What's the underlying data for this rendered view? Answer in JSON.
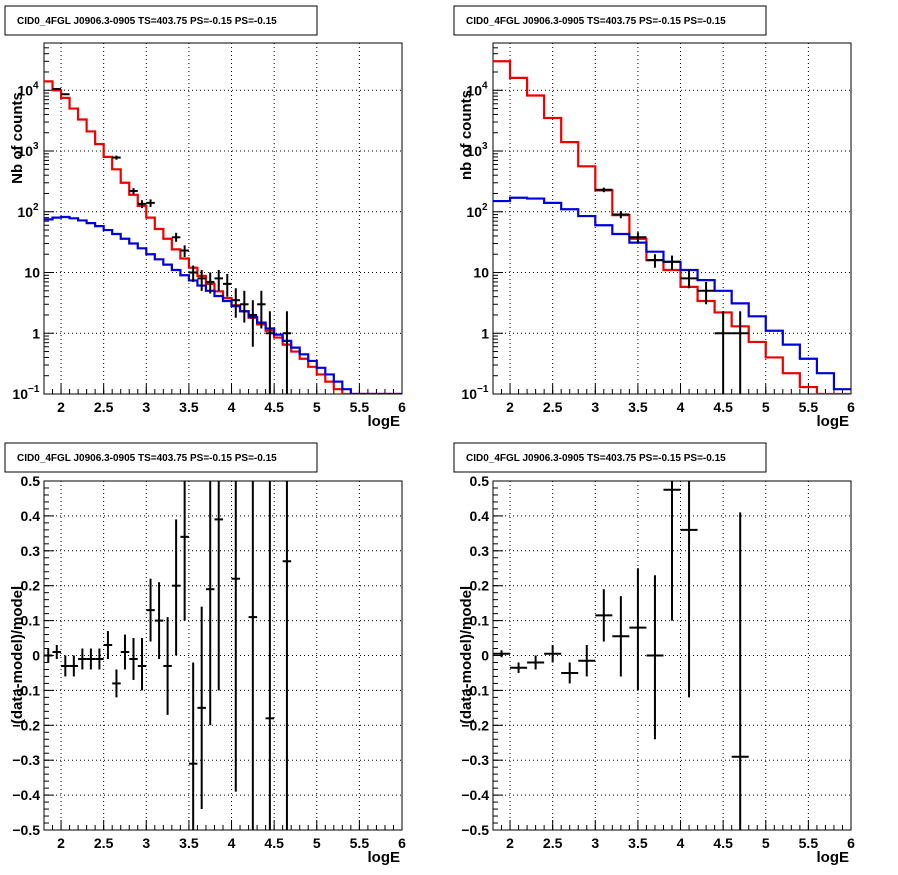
{
  "chart_data": [
    {
      "type": "line",
      "title": "CID0_4FGL J0906.3-0905 TS=403.75 PS=-0.15 PS=-0.15",
      "xlabel": "logE",
      "ylabel": "Nb of counts",
      "xlim": [
        1.8,
        6
      ],
      "ylim": [
        0.1,
        60000
      ],
      "yscale": "log",
      "grid": true,
      "xticks": [
        "2",
        "2.5",
        "3",
        "3.5",
        "4",
        "4.5",
        "5",
        "5.5",
        "6"
      ],
      "yticks": [
        {
          "v": 0.1,
          "label": "10",
          "sup": "−1"
        },
        {
          "v": 1,
          "label": "1",
          "sup": ""
        },
        {
          "v": 10,
          "label": "10",
          "sup": ""
        },
        {
          "v": 100,
          "label": "10",
          "sup": "2"
        },
        {
          "v": 1000,
          "label": "10",
          "sup": "3"
        },
        {
          "v": 10000,
          "label": "10",
          "sup": "4"
        }
      ],
      "series": [
        {
          "color": "#ee0000",
          "style": "step",
          "edges": [
            1.8,
            1.9,
            2.0,
            2.1,
            2.2,
            2.3,
            2.4,
            2.5,
            2.6,
            2.7,
            2.8,
            2.9,
            3.0,
            3.1,
            3.2,
            3.3,
            3.4,
            3.5,
            3.6,
            3.7,
            3.8,
            3.9,
            4.0,
            4.1,
            4.2,
            4.3,
            4.4,
            4.5,
            4.6,
            4.7,
            4.8,
            4.9,
            5.0,
            5.1,
            5.2,
            5.3,
            5.4,
            5.5,
            5.6,
            5.7,
            5.8,
            5.9,
            6.0
          ],
          "values": [
            14000,
            10000,
            7500,
            5000,
            3300,
            2100,
            1300,
            800,
            500,
            300,
            190,
            125,
            80,
            52,
            36,
            24,
            17,
            12,
            8.8,
            6.5,
            4.9,
            3.8,
            2.9,
            2.3,
            1.8,
            1.4,
            1.1,
            0.85,
            0.65,
            0.5,
            0.38,
            0.28,
            0.21,
            0.16,
            0.12,
            0.1,
            0.1,
            0.1,
            0.1,
            0.1,
            0.1,
            0.1
          ]
        },
        {
          "color": "#0000dd",
          "style": "step",
          "edges": [
            1.8,
            1.9,
            2.0,
            2.1,
            2.2,
            2.3,
            2.4,
            2.5,
            2.6,
            2.7,
            2.8,
            2.9,
            3.0,
            3.1,
            3.2,
            3.3,
            3.4,
            3.5,
            3.6,
            3.7,
            3.8,
            3.9,
            4.0,
            4.1,
            4.2,
            4.3,
            4.4,
            4.5,
            4.6,
            4.7,
            4.8,
            4.9,
            5.0,
            5.1,
            5.2,
            5.3,
            5.4,
            5.5,
            5.6,
            5.7,
            5.8,
            5.9,
            6.0
          ],
          "values": [
            75,
            80,
            82,
            78,
            72,
            65,
            58,
            50,
            43,
            36,
            30,
            25,
            20,
            16.5,
            13.5,
            11,
            9,
            7.4,
            6.1,
            5,
            4.1,
            3.4,
            2.8,
            2.3,
            1.85,
            1.5,
            1.2,
            0.95,
            0.75,
            0.58,
            0.45,
            0.35,
            0.27,
            0.21,
            0.16,
            0.12,
            0.1,
            0.1,
            0.1,
            0.1,
            0.1,
            0.1
          ]
        }
      ],
      "points": [
        {
          "x": 1.95,
          "y": 10500,
          "ylo": 10300,
          "yhi": 10700,
          "xerr": 0.05
        },
        {
          "x": 2.05,
          "y": 8600,
          "ylo": 8400,
          "yhi": 8800,
          "xerr": 0.05
        },
        {
          "x": 2.65,
          "y": 780,
          "ylo": 720,
          "yhi": 840,
          "xerr": 0.05
        },
        {
          "x": 2.85,
          "y": 220,
          "ylo": 195,
          "yhi": 245,
          "xerr": 0.05
        },
        {
          "x": 2.95,
          "y": 135,
          "ylo": 115,
          "yhi": 155,
          "xerr": 0.05
        },
        {
          "x": 3.05,
          "y": 140,
          "ylo": 120,
          "yhi": 160,
          "xerr": 0.05
        },
        {
          "x": 3.35,
          "y": 38,
          "ylo": 32,
          "yhi": 45,
          "xerr": 0.05
        },
        {
          "x": 3.45,
          "y": 23,
          "ylo": 18,
          "yhi": 28,
          "xerr": 0.05
        },
        {
          "x": 3.55,
          "y": 10,
          "ylo": 7,
          "yhi": 13,
          "xerr": 0.05
        },
        {
          "x": 3.65,
          "y": 8,
          "ylo": 5,
          "yhi": 11,
          "xerr": 0.05
        },
        {
          "x": 3.75,
          "y": 7,
          "ylo": 4.5,
          "yhi": 10,
          "xerr": 0.05
        },
        {
          "x": 3.85,
          "y": 8,
          "ylo": 5,
          "yhi": 11,
          "xerr": 0.05
        },
        {
          "x": 3.95,
          "y": 6.5,
          "ylo": 4,
          "yhi": 9.5,
          "xerr": 0.05
        },
        {
          "x": 4.05,
          "y": 3.5,
          "ylo": 1.8,
          "yhi": 5.5,
          "xerr": 0.05
        },
        {
          "x": 4.15,
          "y": 3,
          "ylo": 1.5,
          "yhi": 5,
          "xerr": 0.05
        },
        {
          "x": 4.25,
          "y": 2,
          "ylo": 0.6,
          "yhi": 3.5,
          "xerr": 0.05
        },
        {
          "x": 4.35,
          "y": 3,
          "ylo": 1.2,
          "yhi": 5,
          "xerr": 0.05
        },
        {
          "x": 4.45,
          "y": 1,
          "ylo": 0.1,
          "yhi": 2.3,
          "xerr": 0.05
        },
        {
          "x": 4.65,
          "y": 1,
          "ylo": 0.1,
          "yhi": 2.3,
          "xerr": 0.05
        }
      ]
    },
    {
      "type": "line",
      "title": "CID0_4FGL J0906.3-0905 TS=403.75 PS=-0.15 PS=-0.15",
      "xlabel": "logE",
      "ylabel": "nb of counts",
      "xlim": [
        1.8,
        6
      ],
      "ylim": [
        0.1,
        60000
      ],
      "yscale": "log",
      "grid": true,
      "xticks": [
        "2",
        "2.5",
        "3",
        "3.5",
        "4",
        "4.5",
        "5",
        "5.5",
        "6"
      ],
      "yticks": [
        {
          "v": 0.1,
          "label": "10",
          "sup": "−1"
        },
        {
          "v": 1,
          "label": "1",
          "sup": ""
        },
        {
          "v": 10,
          "label": "10",
          "sup": ""
        },
        {
          "v": 100,
          "label": "10",
          "sup": "2"
        },
        {
          "v": 1000,
          "label": "10",
          "sup": "3"
        },
        {
          "v": 10000,
          "label": "10",
          "sup": "4"
        }
      ],
      "series": [
        {
          "color": "#ee0000",
          "style": "step",
          "edges": [
            1.8,
            2.0,
            2.2,
            2.4,
            2.6,
            2.8,
            3.0,
            3.2,
            3.4,
            3.6,
            3.8,
            4.0,
            4.2,
            4.4,
            4.6,
            4.8,
            5.0,
            5.2,
            5.4,
            5.6,
            5.8,
            6.0
          ],
          "values": [
            30000,
            16000,
            8200,
            3500,
            1400,
            560,
            225,
            88,
            36,
            16,
            11,
            5.8,
            3.4,
            2.2,
            1.3,
            0.72,
            0.4,
            0.22,
            0.13,
            0.1,
            0.1
          ]
        },
        {
          "color": "#0000dd",
          "style": "step",
          "edges": [
            1.8,
            2.0,
            2.2,
            2.4,
            2.6,
            2.8,
            3.0,
            3.2,
            3.4,
            3.6,
            3.8,
            4.0,
            4.2,
            4.4,
            4.6,
            4.8,
            5.0,
            5.2,
            5.4,
            5.6,
            5.8,
            6.0
          ],
          "values": [
            150,
            170,
            165,
            140,
            110,
            85,
            60,
            43,
            31,
            22,
            15,
            11,
            7.5,
            5.0,
            3.1,
            1.9,
            1.1,
            0.65,
            0.38,
            0.22,
            0.12
          ]
        }
      ],
      "points": [
        {
          "x": 3.1,
          "y": 230,
          "ylo": 210,
          "yhi": 250,
          "xerr": 0.1
        },
        {
          "x": 3.3,
          "y": 90,
          "ylo": 78,
          "yhi": 103,
          "xerr": 0.1
        },
        {
          "x": 3.5,
          "y": 38,
          "ylo": 31,
          "yhi": 46,
          "xerr": 0.1
        },
        {
          "x": 3.7,
          "y": 16,
          "ylo": 12,
          "yhi": 20,
          "xerr": 0.1
        },
        {
          "x": 3.9,
          "y": 15,
          "ylo": 11,
          "yhi": 19,
          "xerr": 0.1
        },
        {
          "x": 4.1,
          "y": 8,
          "ylo": 5.5,
          "yhi": 11,
          "xerr": 0.1
        },
        {
          "x": 4.3,
          "y": 5,
          "ylo": 3,
          "yhi": 7,
          "xerr": 0.1
        },
        {
          "x": 4.5,
          "y": 1,
          "ylo": 0.1,
          "yhi": 2.3,
          "xerr": 0.1
        },
        {
          "x": 4.7,
          "y": 1,
          "ylo": 0.1,
          "yhi": 2.3,
          "xerr": 0.1
        }
      ]
    },
    {
      "type": "scatter",
      "title": "CID0_4FGL J0906.3-0905 TS=403.75 PS=-0.15 PS=-0.15",
      "xlabel": "logE",
      "ylabel": "(data-model)/model",
      "xlim": [
        1.8,
        6
      ],
      "ylim": [
        -0.5,
        0.5
      ],
      "yscale": "linear",
      "grid": true,
      "xticks": [
        "2",
        "2.5",
        "3",
        "3.5",
        "4",
        "4.5",
        "5",
        "5.5",
        "6"
      ],
      "yticks": [
        "−0.5",
        "−0.4",
        "−0.3",
        "−0.2",
        "−0.1",
        "0",
        "0.1",
        "0.2",
        "0.3",
        "0.4",
        "0.5"
      ],
      "points": [
        {
          "x": 1.85,
          "y": 0.0,
          "ylo": -0.02,
          "yhi": 0.02,
          "xerr": 0.05
        },
        {
          "x": 1.95,
          "y": 0.01,
          "ylo": -0.01,
          "yhi": 0.03,
          "xerr": 0.05
        },
        {
          "x": 2.05,
          "y": -0.03,
          "ylo": -0.06,
          "yhi": 0.0,
          "xerr": 0.05
        },
        {
          "x": 2.15,
          "y": -0.03,
          "ylo": -0.06,
          "yhi": 0.0,
          "xerr": 0.05
        },
        {
          "x": 2.25,
          "y": -0.01,
          "ylo": -0.04,
          "yhi": 0.02,
          "xerr": 0.05
        },
        {
          "x": 2.35,
          "y": -0.01,
          "ylo": -0.04,
          "yhi": 0.02,
          "xerr": 0.05
        },
        {
          "x": 2.45,
          "y": -0.01,
          "ylo": -0.04,
          "yhi": 0.02,
          "xerr": 0.05
        },
        {
          "x": 2.55,
          "y": 0.03,
          "ylo": -0.01,
          "yhi": 0.07,
          "xerr": 0.05
        },
        {
          "x": 2.65,
          "y": -0.08,
          "ylo": -0.12,
          "yhi": -0.04,
          "xerr": 0.05
        },
        {
          "x": 2.75,
          "y": 0.01,
          "ylo": -0.04,
          "yhi": 0.06,
          "xerr": 0.05
        },
        {
          "x": 2.85,
          "y": -0.01,
          "ylo": -0.07,
          "yhi": 0.05,
          "xerr": 0.05
        },
        {
          "x": 2.95,
          "y": -0.03,
          "ylo": -0.1,
          "yhi": 0.05,
          "xerr": 0.05
        },
        {
          "x": 3.05,
          "y": 0.13,
          "ylo": 0.04,
          "yhi": 0.22,
          "xerr": 0.05
        },
        {
          "x": 3.15,
          "y": 0.1,
          "ylo": -0.01,
          "yhi": 0.21,
          "xerr": 0.05
        },
        {
          "x": 3.25,
          "y": -0.03,
          "ylo": -0.17,
          "yhi": 0.11,
          "xerr": 0.05
        },
        {
          "x": 3.35,
          "y": 0.2,
          "ylo": 0.0,
          "yhi": 0.39,
          "xerr": 0.05
        },
        {
          "x": 3.45,
          "y": 0.34,
          "ylo": 0.1,
          "yhi": 0.58,
          "xerr": 0.05
        },
        {
          "x": 3.55,
          "y": -0.31,
          "ylo": -0.6,
          "yhi": -0.02,
          "xerr": 0.05
        },
        {
          "x": 3.65,
          "y": -0.15,
          "ylo": -0.44,
          "yhi": 0.14,
          "xerr": 0.05
        },
        {
          "x": 3.75,
          "y": 0.19,
          "ylo": -0.2,
          "yhi": 0.58,
          "xerr": 0.05
        },
        {
          "x": 3.85,
          "y": 0.39,
          "ylo": -0.1,
          "yhi": 0.88,
          "xerr": 0.05
        },
        {
          "x": 4.05,
          "y": 0.22,
          "ylo": -0.39,
          "yhi": 0.83,
          "xerr": 0.05
        },
        {
          "x": 4.25,
          "y": 0.11,
          "ylo": -0.7,
          "yhi": 0.92,
          "xerr": 0.05
        },
        {
          "x": 4.45,
          "y": -0.18,
          "ylo": -1.0,
          "yhi": 0.64,
          "xerr": 0.05
        },
        {
          "x": 4.65,
          "y": 0.27,
          "ylo": -1.0,
          "yhi": 1.5,
          "xerr": 0.05
        }
      ]
    },
    {
      "type": "scatter",
      "title": "CID0_4FGL J0906.3-0905 TS=403.75 PS=-0.15 PS=-0.15",
      "xlabel": "logE",
      "ylabel": "(data-model)/model",
      "xlim": [
        1.8,
        6
      ],
      "ylim": [
        -0.5,
        0.5
      ],
      "yscale": "linear",
      "grid": true,
      "xticks": [
        "2",
        "2.5",
        "3",
        "3.5",
        "4",
        "4.5",
        "5",
        "5.5",
        "6"
      ],
      "yticks": [
        "−0.5",
        "−0.4",
        "−0.3",
        "−0.2",
        "−0.1",
        "0",
        "0.1",
        "0.2",
        "0.3",
        "0.4",
        "0.5"
      ],
      "points": [
        {
          "x": 1.9,
          "y": 0.005,
          "ylo": -0.005,
          "yhi": 0.015,
          "xerr": 0.1
        },
        {
          "x": 2.1,
          "y": -0.035,
          "ylo": -0.05,
          "yhi": -0.02,
          "xerr": 0.1
        },
        {
          "x": 2.3,
          "y": -0.02,
          "ylo": -0.04,
          "yhi": 0.0,
          "xerr": 0.1
        },
        {
          "x": 2.5,
          "y": 0.005,
          "ylo": -0.02,
          "yhi": 0.03,
          "xerr": 0.1
        },
        {
          "x": 2.7,
          "y": -0.05,
          "ylo": -0.08,
          "yhi": -0.02,
          "xerr": 0.1
        },
        {
          "x": 2.9,
          "y": -0.015,
          "ylo": -0.06,
          "yhi": 0.03,
          "xerr": 0.1
        },
        {
          "x": 3.1,
          "y": 0.115,
          "ylo": 0.04,
          "yhi": 0.19,
          "xerr": 0.1
        },
        {
          "x": 3.3,
          "y": 0.055,
          "ylo": -0.06,
          "yhi": 0.17,
          "xerr": 0.1
        },
        {
          "x": 3.5,
          "y": 0.08,
          "ylo": -0.1,
          "yhi": 0.25,
          "xerr": 0.1
        },
        {
          "x": 3.7,
          "y": 0.0,
          "ylo": -0.24,
          "yhi": 0.23,
          "xerr": 0.1
        },
        {
          "x": 3.9,
          "y": 0.475,
          "ylo": 0.1,
          "yhi": 0.85,
          "xerr": 0.1
        },
        {
          "x": 4.1,
          "y": 0.36,
          "ylo": -0.12,
          "yhi": 0.84,
          "xerr": 0.1
        },
        {
          "x": 4.7,
          "y": -0.29,
          "ylo": -1.0,
          "yhi": 0.41,
          "xerr": 0.1
        }
      ]
    }
  ]
}
